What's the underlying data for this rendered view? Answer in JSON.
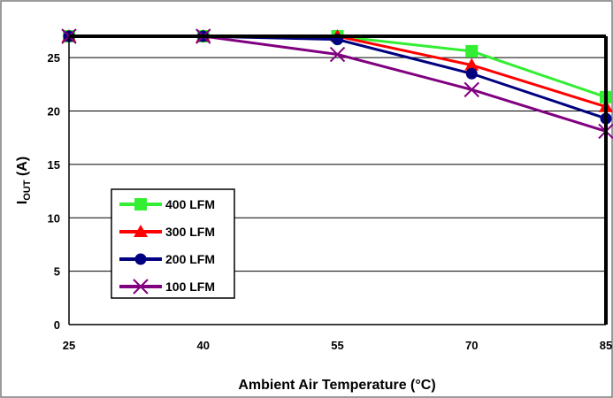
{
  "chart_data": {
    "type": "line",
    "title": "",
    "xlabel": "Ambient Air Temperature (°C)",
    "ylabel": "IOUT (A)",
    "ylabel_main": "I",
    "ylabel_sub": "OUT",
    "ylabel_rest": " (A)",
    "x": [
      25,
      40,
      55,
      70,
      85
    ],
    "xlim": [
      25,
      85
    ],
    "ylim": [
      0,
      27
    ],
    "xticks": [
      "25",
      "40",
      "55",
      "70",
      "85"
    ],
    "yticks": [
      "0",
      "5",
      "10",
      "15",
      "20",
      "25"
    ],
    "grid": true,
    "legend_position": "left-bottom",
    "series": [
      {
        "name": "400 LFM",
        "color": "#33ee33",
        "marker": "square",
        "values": [
          27,
          27,
          27,
          25.6,
          21.3
        ]
      },
      {
        "name": "300 LFM",
        "color": "#ff0000",
        "marker": "triangle",
        "values": [
          27,
          27,
          27,
          24.3,
          20.4
        ]
      },
      {
        "name": "200 LFM",
        "color": "#000080",
        "marker": "circle",
        "values": [
          27,
          27,
          26.7,
          23.5,
          19.3
        ]
      },
      {
        "name": "100 LFM",
        "color": "#800080",
        "marker": "x",
        "values": [
          27,
          27,
          25.3,
          22.0,
          18.1
        ]
      }
    ]
  }
}
